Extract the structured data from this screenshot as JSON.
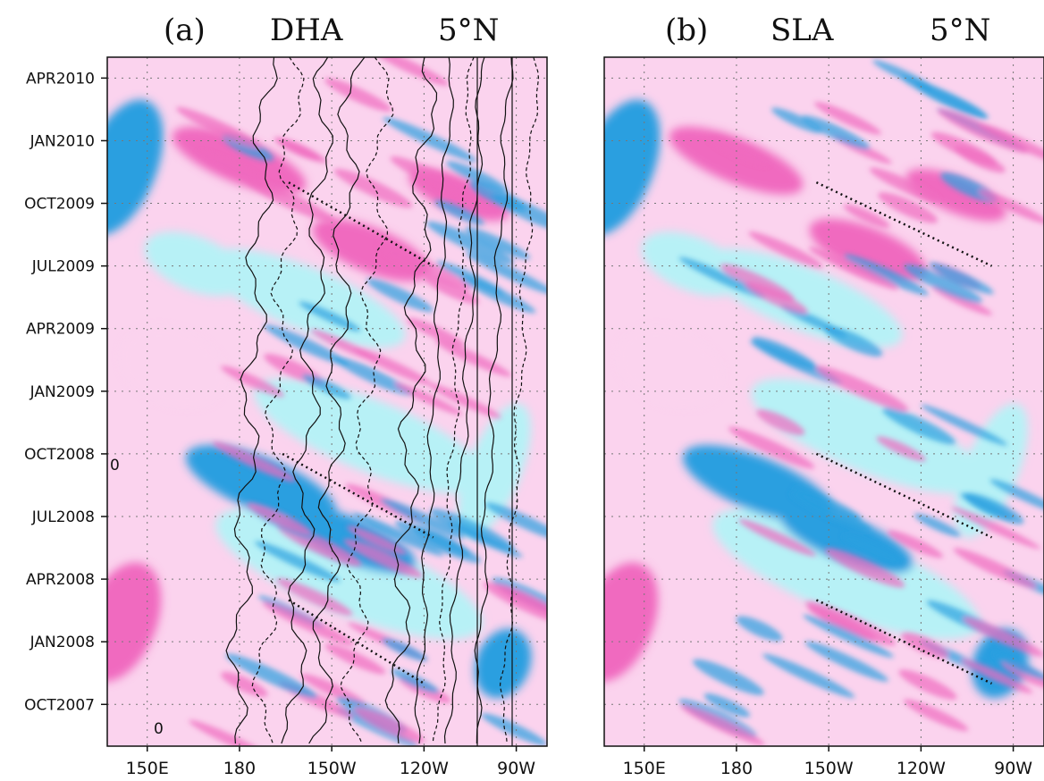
{
  "panels": [
    {
      "label": "(a)",
      "variable": "DHA",
      "latitude": "5°N",
      "y_ticks": [
        "APR2010",
        "JAN2010",
        "OCT2009",
        "JUL2009",
        "APR2009",
        "JAN2009",
        "OCT2008",
        "JUL2008",
        "APR2008",
        "JAN2008",
        "OCT2007"
      ],
      "x_ticks": [
        "150E",
        "180",
        "150W",
        "120W",
        "90W"
      ],
      "has_contours": true,
      "contour_labels": [
        "0",
        "0"
      ]
    },
    {
      "label": "(b)",
      "variable": "SLA",
      "latitude": "5°N",
      "y_ticks": [],
      "x_ticks": [
        "150E",
        "180",
        "150W",
        "120W",
        "90W"
      ],
      "has_contours": false,
      "contour_labels": []
    }
  ],
  "chart_data": [
    {
      "type": "heatmap",
      "title": "(a) DHA 5°N",
      "x_axis": "longitude",
      "x_ticks": [
        "150E",
        "180",
        "150W",
        "120W",
        "90W"
      ],
      "x_tick_values": [
        150,
        180,
        210,
        240,
        270
      ],
      "xlim": [
        137,
        280
      ],
      "y_axis": "time",
      "y_ticks": [
        "APR2010",
        "JAN2010",
        "OCT2009",
        "JUL2009",
        "APR2009",
        "JAN2009",
        "OCT2008",
        "JUL2008",
        "APR2008",
        "JAN2008",
        "OCT2007"
      ],
      "y_tick_values": [
        "2010-04",
        "2010-01",
        "2009-10",
        "2009-07",
        "2009-04",
        "2009-01",
        "2008-10",
        "2008-07",
        "2008-04",
        "2008-01",
        "2007-10"
      ],
      "ylim": [
        "2007-08",
        "2010-05"
      ],
      "colors": {
        "positive": "#f06bbf",
        "positive_light": "#fbd3ee",
        "negative": "#2a9fe0",
        "negative_light": "#b7f1f6",
        "near_zero": "#ffffff"
      },
      "grid": true,
      "grid_style": "dotted",
      "overlay": "black contour lines (solid positive, dashed negative)",
      "propagation_lines": [
        {
          "start": [
            "2009-11",
            196
          ],
          "end": [
            "2009-07",
            243
          ]
        },
        {
          "start": [
            "2008-10",
            194
          ],
          "end": [
            "2008-06",
            243
          ]
        },
        {
          "start": [
            "2008-03",
            196
          ],
          "end": [
            "2007-11",
            240
          ]
        }
      ]
    },
    {
      "type": "heatmap",
      "title": "(b) SLA 5°N",
      "x_axis": "longitude",
      "x_ticks": [
        "150E",
        "180",
        "150W",
        "120W",
        "90W"
      ],
      "x_tick_values": [
        150,
        180,
        210,
        240,
        270
      ],
      "xlim": [
        137,
        280
      ],
      "y_axis": "time",
      "ylim": [
        "2007-08",
        "2010-05"
      ],
      "colors": {
        "positive": "#f06bbf",
        "positive_light": "#fbd3ee",
        "negative": "#2a9fe0",
        "negative_light": "#b7f1f6",
        "near_zero": "#ffffff"
      },
      "grid": true,
      "grid_style": "dotted",
      "propagation_lines": [
        {
          "start": [
            "2009-11",
            206
          ],
          "end": [
            "2009-07",
            263
          ]
        },
        {
          "start": [
            "2008-10",
            206
          ],
          "end": [
            "2008-06",
            263
          ]
        },
        {
          "start": [
            "2008-03",
            206
          ],
          "end": [
            "2007-11",
            263
          ]
        }
      ]
    }
  ]
}
